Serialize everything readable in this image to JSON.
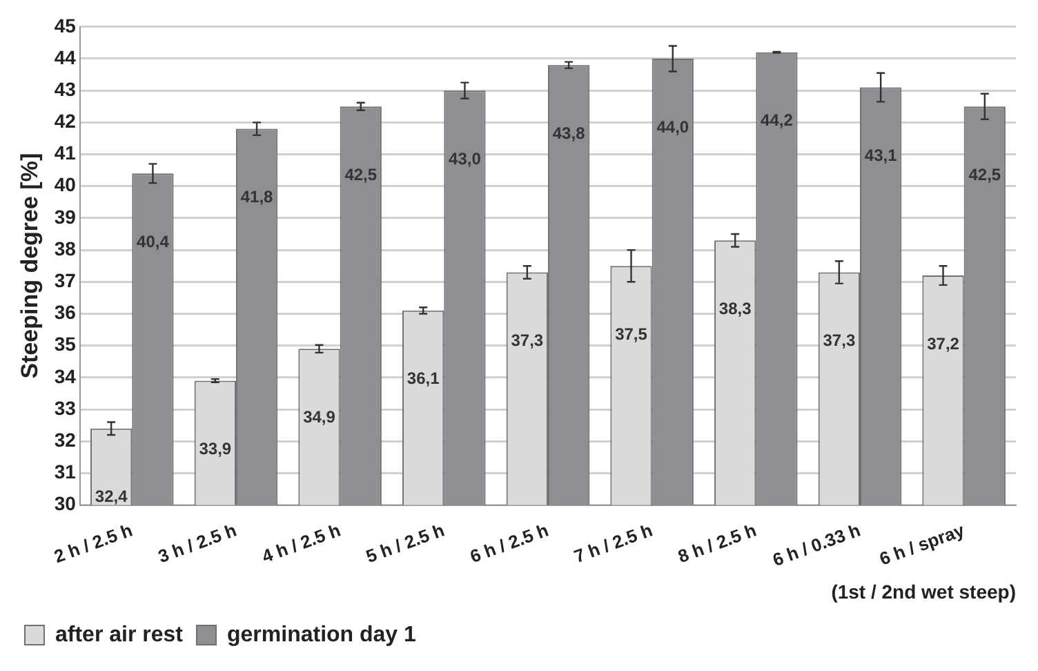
{
  "chart_data": {
    "type": "bar",
    "ylabel": "Steeping degree [%]",
    "xlabel": "(1st / 2nd wet steep)",
    "categories": [
      "2 h / 2.5 h",
      "3 h / 2.5 h",
      "4 h / 2.5 h",
      "5 h / 2.5 h",
      "6 h / 2.5 h",
      "7 h / 2.5 h",
      "8 h / 2.5 h",
      "6 h / 0.33 h",
      "6 h / spray"
    ],
    "series": [
      {
        "name": "after air rest",
        "color": "#d9dadc",
        "values": [
          32.4,
          33.9,
          34.9,
          36.1,
          37.3,
          37.5,
          38.3,
          37.3,
          37.2
        ],
        "errors": [
          0.2,
          0.05,
          0.12,
          0.1,
          0.2,
          0.5,
          0.2,
          0.35,
          0.3
        ],
        "value_labels": [
          "32,4",
          "33,9",
          "34,9",
          "36,1",
          "37,3",
          "37,5",
          "38,3",
          "37,3",
          "37,2"
        ]
      },
      {
        "name": "germination day 1",
        "color": "#8e8f93",
        "values": [
          40.4,
          41.8,
          42.5,
          43.0,
          43.8,
          44.0,
          44.2,
          43.1,
          42.5
        ],
        "errors": [
          0.3,
          0.2,
          0.12,
          0.25,
          0.1,
          0.4,
          0.02,
          0.45,
          0.4
        ],
        "value_labels": [
          "40,4",
          "41,8",
          "42,5",
          "43,0",
          "43,8",
          "44,0",
          "44,2",
          "43,1",
          "42,5"
        ]
      }
    ],
    "ylim": [
      30,
      45
    ],
    "yticks": [
      30,
      31,
      32,
      33,
      34,
      35,
      36,
      37,
      38,
      39,
      40,
      41,
      42,
      43,
      44,
      45
    ],
    "grid": "y",
    "legend": "bottom left"
  }
}
